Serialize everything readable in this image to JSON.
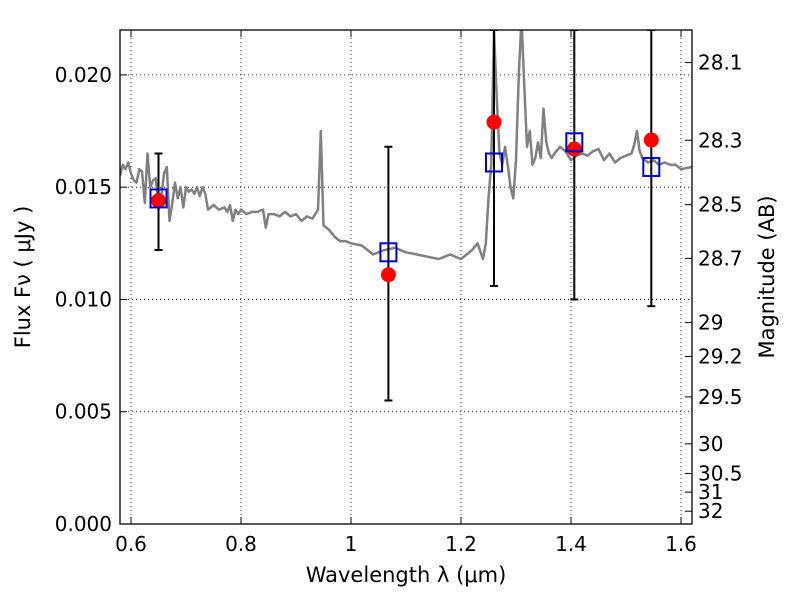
{
  "chart_data": {
    "type": "line",
    "xlabel": "Wavelength  λ (μm)",
    "ylabel": "Flux  Fν  ( μJy )",
    "y2label": "Magnitude (AB)",
    "xlim": [
      0.58,
      1.62
    ],
    "ylim": [
      0.0,
      0.022
    ],
    "grid": true,
    "x_ticks": [
      0.6,
      0.8,
      1.0,
      1.2,
      1.4,
      1.6
    ],
    "x_tick_labels": [
      "0.6",
      "0.8",
      "1",
      "1.2",
      "1.4",
      "1.6"
    ],
    "y_ticks": [
      0.0,
      0.005,
      0.01,
      0.015,
      0.02
    ],
    "y_tick_labels": [
      "0.000",
      "0.005",
      "0.010",
      "0.015",
      "0.020"
    ],
    "mag_ticks": [
      {
        "label": "28.1",
        "flux": 0.02055
      },
      {
        "label": "28.3",
        "flux": 0.01709
      },
      {
        "label": "28.5",
        "flux": 0.01422
      },
      {
        "label": "28.7",
        "flux": 0.01183
      },
      {
        "label": "29",
        "flux": 0.00897
      },
      {
        "label": "29.2",
        "flux": 0.00746
      },
      {
        "label": "29.5",
        "flux": 0.00566
      },
      {
        "label": "30",
        "flux": 0.00357
      },
      {
        "label": "30.5",
        "flux": 0.00225
      },
      {
        "label": "31",
        "flux": 0.00142
      },
      {
        "label": "32",
        "flux": 0.00057
      }
    ],
    "spectrum": {
      "color": "#808080",
      "x": [
        0.58,
        0.585,
        0.59,
        0.595,
        0.6,
        0.605,
        0.61,
        0.615,
        0.62,
        0.625,
        0.63,
        0.635,
        0.64,
        0.645,
        0.65,
        0.655,
        0.66,
        0.665,
        0.67,
        0.675,
        0.68,
        0.685,
        0.69,
        0.695,
        0.7,
        0.705,
        0.71,
        0.715,
        0.72,
        0.725,
        0.73,
        0.735,
        0.74,
        0.75,
        0.76,
        0.77,
        0.775,
        0.78,
        0.785,
        0.79,
        0.795,
        0.8,
        0.81,
        0.82,
        0.83,
        0.84,
        0.845,
        0.85,
        0.86,
        0.87,
        0.88,
        0.89,
        0.9,
        0.91,
        0.92,
        0.93,
        0.94,
        0.945,
        0.95,
        0.955,
        0.96,
        0.97,
        0.98,
        0.99,
        1.0,
        1.02,
        1.04,
        1.06,
        1.08,
        1.1,
        1.12,
        1.14,
        1.16,
        1.18,
        1.2,
        1.22,
        1.23,
        1.24,
        1.245,
        1.25,
        1.255,
        1.26,
        1.265,
        1.27,
        1.275,
        1.28,
        1.285,
        1.29,
        1.295,
        1.3,
        1.305,
        1.31,
        1.315,
        1.32,
        1.325,
        1.33,
        1.335,
        1.34,
        1.345,
        1.35,
        1.355,
        1.36,
        1.365,
        1.37,
        1.38,
        1.39,
        1.4,
        1.41,
        1.42,
        1.43,
        1.44,
        1.45,
        1.46,
        1.47,
        1.48,
        1.49,
        1.5,
        1.51,
        1.515,
        1.52,
        1.525,
        1.53,
        1.54,
        1.55,
        1.56,
        1.57,
        1.58,
        1.59,
        1.6,
        1.62
      ],
      "y": [
        0.0155,
        0.016,
        0.0158,
        0.0161,
        0.0156,
        0.0153,
        0.0152,
        0.0158,
        0.0157,
        0.0143,
        0.0165,
        0.015,
        0.0153,
        0.0154,
        0.014,
        0.0146,
        0.0156,
        0.0159,
        0.0135,
        0.0143,
        0.0152,
        0.0145,
        0.015,
        0.0141,
        0.015,
        0.0148,
        0.0149,
        0.0147,
        0.015,
        0.0146,
        0.015,
        0.0147,
        0.014,
        0.0142,
        0.014,
        0.0141,
        0.0139,
        0.0142,
        0.0135,
        0.014,
        0.0138,
        0.014,
        0.0138,
        0.0139,
        0.0139,
        0.014,
        0.0132,
        0.0138,
        0.0138,
        0.0137,
        0.0139,
        0.0137,
        0.0138,
        0.0135,
        0.0137,
        0.0136,
        0.014,
        0.0175,
        0.0133,
        0.0132,
        0.0131,
        0.0128,
        0.0126,
        0.0126,
        0.0125,
        0.0124,
        0.012,
        0.0122,
        0.0123,
        0.0121,
        0.012,
        0.0119,
        0.0118,
        0.012,
        0.0118,
        0.0122,
        0.0125,
        0.0118,
        0.0125,
        0.0145,
        0.016,
        0.022,
        0.019,
        0.0165,
        0.016,
        0.0168,
        0.016,
        0.015,
        0.0145,
        0.0162,
        0.02,
        0.0225,
        0.0195,
        0.0168,
        0.0175,
        0.016,
        0.0163,
        0.017,
        0.0163,
        0.0185,
        0.017,
        0.0165,
        0.0163,
        0.0165,
        0.0168,
        0.0166,
        0.0162,
        0.0164,
        0.0165,
        0.0164,
        0.0166,
        0.0167,
        0.0162,
        0.0165,
        0.0161,
        0.0163,
        0.0164,
        0.0165,
        0.0169,
        0.0175,
        0.0166,
        0.0163,
        0.0161,
        0.0162,
        0.016,
        0.0161,
        0.016,
        0.016,
        0.0158,
        0.0159
      ]
    },
    "photometry": {
      "color": "#ff0000",
      "x": [
        0.65,
        1.068,
        1.26,
        1.406,
        1.546
      ],
      "y": [
        0.0144,
        0.0111,
        0.0179,
        0.0167,
        0.0171
      ],
      "yerr_low": [
        0.0122,
        0.0055,
        0.0106,
        0.01,
        0.0097
      ],
      "yerr_high": [
        0.0165,
        0.0168,
        0.022,
        0.022,
        0.022
      ]
    },
    "model_flux": {
      "color": "#0000cc",
      "x": [
        0.65,
        1.068,
        1.26,
        1.406,
        1.546
      ],
      "y": [
        0.0145,
        0.0121,
        0.0161,
        0.017,
        0.0159
      ]
    }
  }
}
